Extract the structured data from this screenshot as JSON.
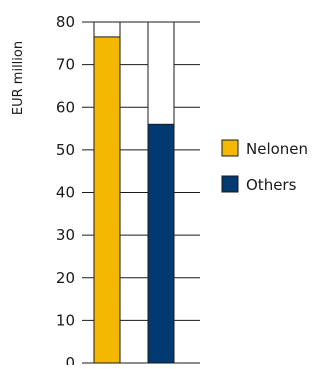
{
  "chart_data": {
    "type": "bar",
    "title": "",
    "xlabel": "",
    "ylabel": "EUR million",
    "ylim": [
      0,
      80
    ],
    "yticks": [
      0,
      10,
      20,
      30,
      40,
      50,
      60,
      70,
      80
    ],
    "grid": true,
    "legend_position": "right",
    "bar_outline": "#1a1a1a",
    "bar_frame_top": 80,
    "series": [
      {
        "name": "Nelonen",
        "value": 76.5,
        "color": "#f5b800"
      },
      {
        "name": "Others",
        "value": 56,
        "color": "#003a70"
      }
    ]
  }
}
